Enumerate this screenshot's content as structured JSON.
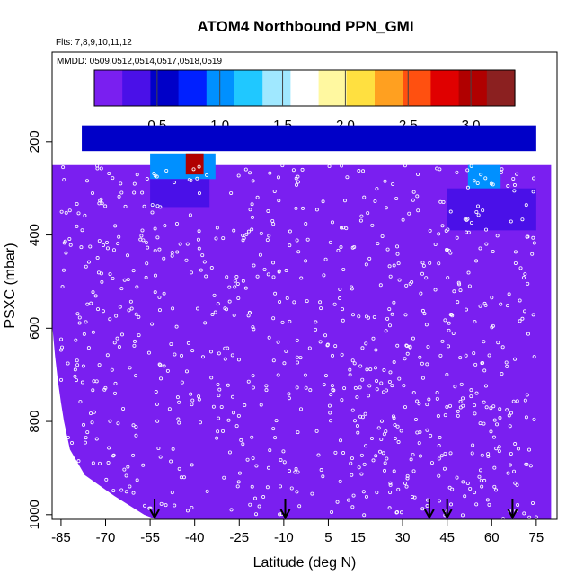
{
  "chart_data": {
    "type": "heatmap",
    "title": "ATOM4 Northbound PPN_GMI",
    "flights_label": "Flts: 7,8,9,10,11,12",
    "dates_label": "MMDD: 0509,0512,0514,0517,0518,0519",
    "xlabel": "Latitude (deg N)",
    "ylabel": "PSXC (mbar)",
    "xlim": [
      -88,
      82
    ],
    "ylim": [
      1010,
      50
    ],
    "x_ticks": [
      -85,
      -70,
      -55,
      -40,
      -25,
      -10,
      5,
      15,
      30,
      45,
      60,
      75
    ],
    "x_tick_labels": [
      "-85",
      "-70",
      "-55",
      "-40",
      "-25",
      "-10",
      "5",
      "15",
      "30",
      "45",
      "60",
      "75"
    ],
    "y_ticks": [
      200,
      400,
      600,
      800,
      1000
    ],
    "y_tick_labels": [
      "200",
      "400",
      "600",
      "800",
      "1000"
    ],
    "colorbar": {
      "range": [
        0.0,
        3.35
      ],
      "ticks": [
        0.5,
        1.0,
        1.5,
        2.0,
        2.5,
        3.0
      ],
      "tick_labels": [
        "0.5",
        "1.0",
        "1.5",
        "2.0",
        "2.5",
        "3.0"
      ],
      "colors": [
        "#7a1ff0",
        "#4a10e8",
        "#0000c8",
        "#0020ff",
        "#0090ff",
        "#20c8ff",
        "#a0e8ff",
        "#ffffff",
        "#fff8a0",
        "#ffe040",
        "#ffa020",
        "#ff5010",
        "#e00000",
        "#b00000",
        "#8b2020"
      ]
    },
    "arrow_latitudes": [
      -53.5,
      -9.5,
      39,
      45,
      67
    ],
    "background_value": 0.05,
    "columns": [
      {
        "lat": -85,
        "surface_p": 1000
      },
      {
        "lat": -80,
        "surface_p": 1000
      },
      {
        "lat": -75,
        "surface_p": 1000
      },
      {
        "lat": -70,
        "surface_p": 1000
      },
      {
        "lat": -65,
        "surface_p": 1000
      },
      {
        "lat": -60,
        "surface_p": 1000
      },
      {
        "lat": -55,
        "surface_p": 1000
      },
      {
        "lat": -50,
        "surface_p": 1000
      }
    ],
    "features": [
      {
        "name": "upper_band",
        "lat": [
          -78,
          75
        ],
        "p": [
          165,
          220
        ],
        "value": 0.45
      },
      {
        "name": "sh_upper_core",
        "lat": [
          -55,
          -33
        ],
        "p": [
          225,
          280
        ],
        "value": 1.1
      },
      {
        "name": "sh_max",
        "lat": [
          -43,
          -37
        ],
        "p": [
          225,
          270
        ],
        "value": 3.0
      },
      {
        "name": "sh_mid",
        "lat": [
          -55,
          -35
        ],
        "p": [
          280,
          340
        ],
        "value": 0.4
      },
      {
        "name": "nh_upper_core",
        "lat": [
          52,
          63
        ],
        "p": [
          250,
          330
        ],
        "value": 1.0
      },
      {
        "name": "nh_mid",
        "lat": [
          45,
          75
        ],
        "p": [
          300,
          390
        ],
        "value": 0.35
      }
    ],
    "surface_profile": [
      {
        "lat": -88,
        "p": 590
      },
      {
        "lat": -87,
        "p": 660
      },
      {
        "lat": -86,
        "p": 715
      },
      {
        "lat": -85,
        "p": 760
      },
      {
        "lat": -84,
        "p": 800
      },
      {
        "lat": -82,
        "p": 860
      },
      {
        "lat": -77,
        "p": 915
      },
      {
        "lat": -67,
        "p": 960
      },
      {
        "lat": -57,
        "p": 1000
      },
      {
        "lat": -53,
        "p": 1010
      }
    ]
  }
}
